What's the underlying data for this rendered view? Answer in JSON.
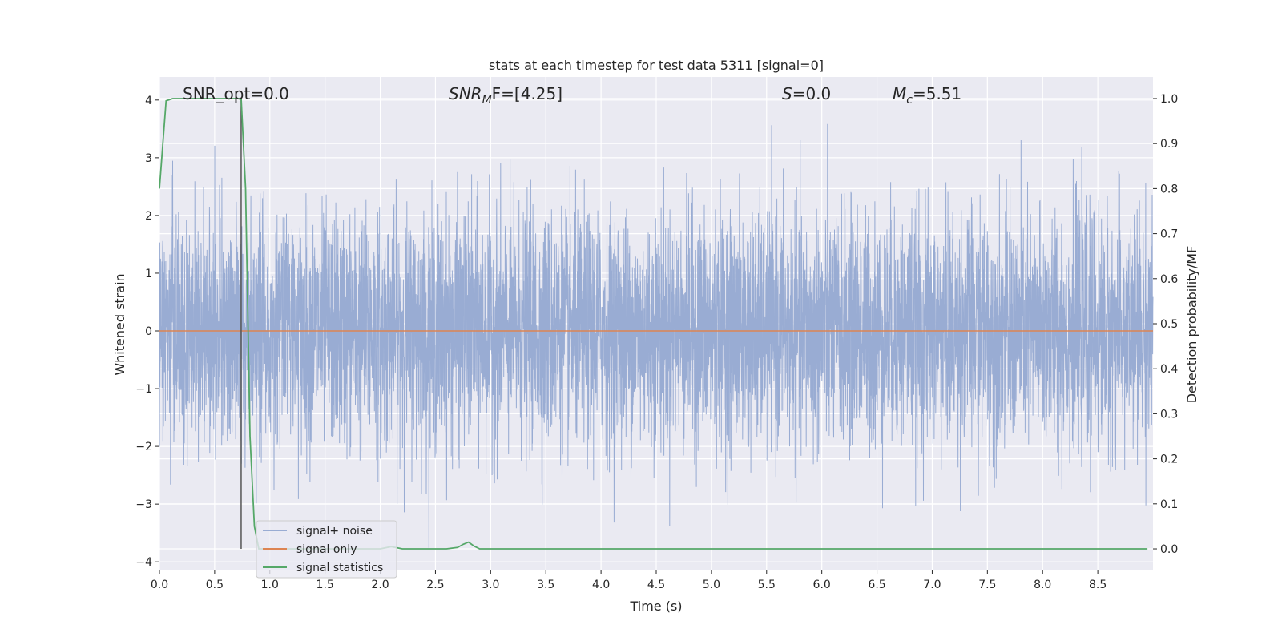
{
  "chart_data": {
    "type": "line",
    "title": "stats at each timestep for test data 5311 [signal=0]",
    "xlabel": "Time (s)",
    "ylabel": "Whitened strain",
    "y2label": "Detection probability/MF",
    "xlim": [
      0,
      9.0
    ],
    "ylim": [
      -4.15,
      4.4
    ],
    "y2lim": [
      -0.048,
      1.048
    ],
    "x_ticks": [
      "0.0",
      "0.5",
      "1.0",
      "1.5",
      "2.0",
      "2.5",
      "3.0",
      "3.5",
      "4.0",
      "4.5",
      "5.0",
      "5.5",
      "6.0",
      "6.5",
      "7.0",
      "7.5",
      "8.0",
      "8.5"
    ],
    "y_ticks": [
      "4",
      "3",
      "2",
      "1",
      "0",
      "−1",
      "−2",
      "−3",
      "−4"
    ],
    "y2_ticks": [
      "1.0",
      "0.9",
      "0.8",
      "0.7",
      "0.6",
      "0.5",
      "0.4",
      "0.3",
      "0.2",
      "0.1",
      "0.0"
    ],
    "grid": true,
    "legend_position": "lower-left",
    "annotations": {
      "snr_opt": "SNR_opt=0.0",
      "snr_mf": "SNR_MF=[4.25]",
      "snr_mf_base": "SNR",
      "snr_mf_sub": "M",
      "snr_mf_tail": "F=[4.25]",
      "s_stat": "S=0.0",
      "s_var": "S",
      "s_tail": "=0.0",
      "mc": "M_c=5.51",
      "mc_base": "M",
      "mc_sub": "c",
      "mc_tail": "=5.51"
    },
    "vertical_line_x": 0.74,
    "series": [
      {
        "name": "signal+ noise",
        "color": "#99acd3",
        "axis": "left",
        "style": "Gaussian noise, sampled ~2048 Hz, sigma ≈ 1, range ≈ ±4",
        "noise_sigma": 1.0,
        "x_range": [
          0,
          9.0
        ]
      },
      {
        "name": "signal only",
        "color": "#dd8452",
        "axis": "left",
        "x": [
          0,
          9.0
        ],
        "values": [
          0,
          0
        ]
      },
      {
        "name": "signal statistics",
        "color": "#55a868",
        "axis": "right",
        "x": [
          0.0,
          0.06,
          0.12,
          0.2,
          0.3,
          0.4,
          0.5,
          0.6,
          0.7,
          0.74,
          0.78,
          0.82,
          0.86,
          0.9,
          1.0,
          1.5,
          2.0,
          2.1,
          2.2,
          2.5,
          2.6,
          2.7,
          2.75,
          2.8,
          2.85,
          2.9,
          3.0,
          3.5,
          4.0,
          5.0,
          6.0,
          7.0,
          8.0,
          8.95
        ],
        "values": [
          0.8,
          0.995,
          1.0,
          1.0,
          1.0,
          1.0,
          1.0,
          1.0,
          1.0,
          1.0,
          0.8,
          0.25,
          0.05,
          0.0,
          0.0,
          0.0,
          0.0,
          0.005,
          0.0,
          0.0,
          0.0,
          0.003,
          0.01,
          0.015,
          0.006,
          0.0,
          0.0,
          0.0,
          0.0,
          0.0,
          0.0,
          0.0,
          0.0,
          0.0
        ]
      }
    ]
  }
}
